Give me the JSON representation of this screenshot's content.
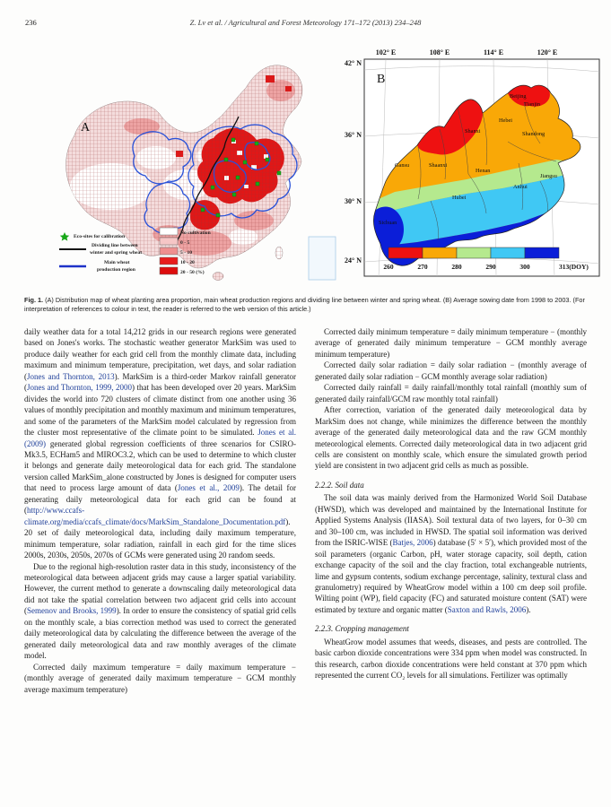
{
  "page": {
    "number": "236",
    "running_head": "Z. Lv et al. / Agricultural and Forest Meteorology 171–172 (2013) 234–248"
  },
  "figure": {
    "caption_label": "Fig. 1.",
    "caption_text": "(A) Distribution map of wheat planting area proportion, main wheat production regions and dividing line between winter and spring wheat. (B) Average sowing date from 1998 to 2003. (For interpretation of references to colour in text, the reader is referred to the web version of this article.)",
    "map_a": {
      "label": "A",
      "legend": {
        "eco_sites": "Eco-sites for calibration",
        "dividing_line_1": "Dividing line between",
        "dividing_line_2": "winter and spring wheat",
        "production_1": "Main wheat",
        "production_2": "production region",
        "classes": [
          {
            "label": "No cultivation",
            "color": "#ffffff"
          },
          {
            "label": "0  -  5",
            "color": "#f6c6c6"
          },
          {
            "label": "5  -  10",
            "color": "#ef8f8f"
          },
          {
            "label": "10  -  20",
            "color": "#e81c1c"
          },
          {
            "label": "20  -  50  (%)",
            "color": "#dd0d0d"
          }
        ]
      }
    },
    "map_b": {
      "label": "B",
      "lon_ticks": [
        "102° E",
        "108° E",
        "114° E",
        "120° E"
      ],
      "lat_ticks": [
        "42° N",
        "36° N",
        "30° N",
        "24° N"
      ],
      "provinces": [
        "Beijing",
        "Tianjin",
        "Hebei",
        "Shanxi",
        "Shandong",
        "Gansu",
        "Shaanxi",
        "Henan",
        "Jiangsu",
        "Anhui",
        "Hubei",
        "Sichuan"
      ],
      "colorbar": {
        "ticks": [
          "260",
          "270",
          "280",
          "290",
          "300",
          "313(DOY)"
        ],
        "colors": [
          "#ee1111",
          "#f9a807",
          "#b5e98e",
          "#40c8f4",
          "#0b1ed8"
        ]
      }
    }
  },
  "citations": [
    "Jones and Thornton, 2013",
    "Jones and Thornton, 1999, 2000",
    "Jones et al. (2009)",
    "Jones et al., 2009",
    "http://www.ccafs-climate.org/media/ccafs_climate/docs/MarkSim_Standalone_Documentation.pdf",
    "Semenov and Brooks, 1999",
    "Batjes, 2006",
    "Saxton and Rawls, 2006"
  ],
  "columns": {
    "left": [
      {
        "t": "p",
        "indent": false,
        "text": "daily weather data for a total 14,212 grids in our research regions were generated based on Jones's works. The stochastic weather generator MarkSim was used to produce daily weather for each grid cell from the monthly climate data, including maximum and minimum temperature, precipitation, wet days, and solar radiation (Jones and Thornton, 2013). MarkSim is a third-order Markov rainfall generator (Jones and Thornton, 1999, 2000) that has been developed over 20 years. MarkSim divides the world into 720 clusters of climate distinct from one another using 36 values of monthly precipitation and monthly maximum and minimum temperatures, and some of the parameters of the MarkSim model calculated by regression from the cluster most representative of the climate point to be simulated. Jones et al. (2009) generated global regression coefficients of three scenarios for CSIRO-Mk3.5, ECHam5 and MIROC3.2, which can be used to determine to which cluster it belongs and generate daily meteorological data for each grid. The standalone version called MarkSim_alone constructed by Jones is designed for computer users that need to process large amount of data (Jones et al., 2009). The detail for generating daily meteorological data for each grid can be found at (http://www.ccafs-climate.org/media/ccafs_climate/docs/MarkSim_Standalone_Documentation.pdf). 20 set of daily meteorological data, including daily maximum temperature, minimum temperature, solar radiation, rainfall in each gird for the time slices 2000s, 2030s, 2050s, 2070s of GCMs were generated using 20 random seeds."
      },
      {
        "t": "p",
        "indent": true,
        "text": "Due to the regional high-resolution raster data in this study, inconsistency of the meteorological data between adjacent grids may cause a larger spatial variability. However, the current method to generate a downscaling daily meteorological data did not take the spatial correlation between two adjacent grid cells into account (Semenov and Brooks, 1999). In order to ensure the consistency of spatial grid cells on the monthly scale, a bias correction method was used to correct the generated daily meteorological data by calculating the difference between the average of the generated daily meteorological data and raw monthly averages of the climate model."
      },
      {
        "t": "p",
        "indent": true,
        "text": "Corrected daily maximum temperature = daily maximum temperature − (monthly average of generated daily maximum temperature − GCM monthly average maximum temperature)"
      }
    ],
    "right": [
      {
        "t": "p",
        "indent": true,
        "text": "Corrected daily minimum temperature = daily minimum temperature − (monthly average of generated daily minimum temperature − GCM monthly average minimum temperature)"
      },
      {
        "t": "p",
        "indent": true,
        "text": "Corrected daily solar radiation = daily solar radiation − (monthly average of generated daily solar radiation − GCM monthly average solar radiation)"
      },
      {
        "t": "p",
        "indent": true,
        "text": "Corrected daily rainfall = daily rainfall/monthly total rainfall (monthly sum of generated daily rainfall/GCM raw monthly total rainfall)"
      },
      {
        "t": "p",
        "indent": true,
        "text": "After correction, variation of the generated daily meteorological data by MarkSim does not change, while minimizes the difference between the monthly average of the generated daily meteorological data and the raw GCM monthly meteorological elements. Corrected daily meteorological data in two adjacent grid cells are consistent on monthly scale, which ensure the simulated growth period yield are consistent in two adjacent grid cells as much as possible."
      },
      {
        "t": "h",
        "text": "2.2.2. Soil data"
      },
      {
        "t": "p",
        "indent": true,
        "text": "The soil data was mainly derived from the Harmonized World Soil Database (HWSD), which was developed and maintained by the International Institute for Applied Systems Analysis (IIASA). Soil textural data of two layers, for 0–30 cm and 30–100 cm, was included in HWSD. The spatial soil information was derived from the ISRIC-WISE (Batjes, 2006) database (5′ × 5′), which provided most of the soil parameters (organic Carbon, pH, water storage capacity, soil depth, cation exchange capacity of the soil and the clay fraction, total exchangeable nutrients, lime and gypsum contents, sodium exchange percentage, salinity, textural class and granulometry) required by WheatGrow model within a 100 cm deep soil profile. Wilting point (WP), field capacity (FC) and saturated moisture content (SAT) were estimated by texture and organic matter (Saxton and Rawls, 2006)."
      },
      {
        "t": "h",
        "text": "2.2.3. Cropping management"
      },
      {
        "t": "p",
        "indent": true,
        "text": "WheatGrow model assumes that weeds, diseases, and pests are controlled. The basic carbon dioxide concentrations were 334 ppm when model was constructed. In this research, carbon dioxide concentrations were held constant at 370 ppm which represented the current CO₂ levels for all simulations. Fertilizer was optimally"
      }
    ]
  }
}
